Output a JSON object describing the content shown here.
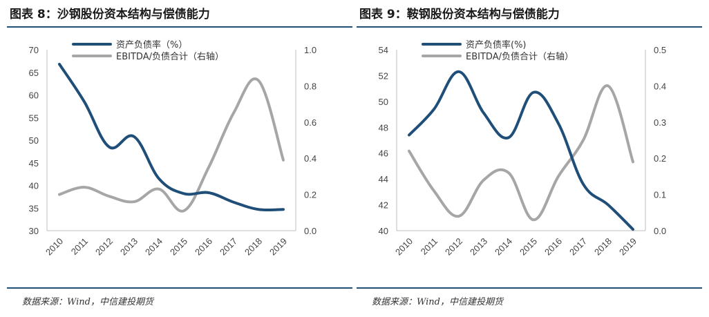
{
  "figures": [
    {
      "title": "图表 8：沙钢股份资本结构与偿债能力",
      "source": "数据来源：Wind，中信建投期货",
      "chart_data": {
        "type": "line",
        "categories": [
          "2010",
          "2011",
          "2012",
          "2013",
          "2014",
          "2015",
          "2016",
          "2017",
          "2018",
          "2019"
        ],
        "series": [
          {
            "name": "资产负债率（%）",
            "axis": "left",
            "color": "#1f4e79",
            "values": [
              66.8,
              58.5,
              48.5,
              50.8,
              41.5,
              38.2,
              38.4,
              36.3,
              34.7,
              34.7
            ]
          },
          {
            "name": "EBITDA/负债合计（右轴）",
            "axis": "right",
            "color": "#a6a6a6",
            "values": [
              0.2,
              0.24,
              0.19,
              0.16,
              0.23,
              0.11,
              0.35,
              0.65,
              0.83,
              0.39
            ]
          }
        ],
        "ylim_left": [
          30,
          70
        ],
        "yticks_left": [
          "70",
          "65",
          "60",
          "55",
          "50",
          "45",
          "40",
          "35",
          "30"
        ],
        "ylim_right": [
          0,
          1.0
        ],
        "yticks_right": [
          "1.0",
          "0.8",
          "0.6",
          "0.4",
          "0.2",
          "0.0"
        ],
        "legend": "top-left",
        "grid": false
      }
    },
    {
      "title": "图表 9：鞍钢股份资本结构与偿债能力",
      "source": "数据来源：Wind，中信建投期货",
      "chart_data": {
        "type": "line",
        "categories": [
          "2010",
          "2011",
          "2012",
          "2013",
          "2014",
          "2015",
          "2016",
          "2017",
          "2018",
          "2019"
        ],
        "series": [
          {
            "name": "资产负债率(%)",
            "axis": "left",
            "color": "#1f4e79",
            "values": [
              47.4,
              49.4,
              52.3,
              49.1,
              47.2,
              50.7,
              48.3,
              43.6,
              42.0,
              40.1
            ]
          },
          {
            "name": "EBITDA/负债合计（右轴）",
            "axis": "right",
            "color": "#a6a6a6",
            "values": [
              0.22,
              0.11,
              0.04,
              0.14,
              0.16,
              0.03,
              0.15,
              0.25,
              0.4,
              0.19
            ]
          }
        ],
        "ylim_left": [
          40,
          54
        ],
        "yticks_left": [
          "54",
          "52",
          "50",
          "48",
          "46",
          "44",
          "42",
          "40"
        ],
        "ylim_right": [
          0,
          0.5
        ],
        "yticks_right": [
          "0.5",
          "0.4",
          "0.3",
          "0.2",
          "0.1",
          "0.0"
        ],
        "legend": "top-left",
        "grid": false
      }
    }
  ]
}
